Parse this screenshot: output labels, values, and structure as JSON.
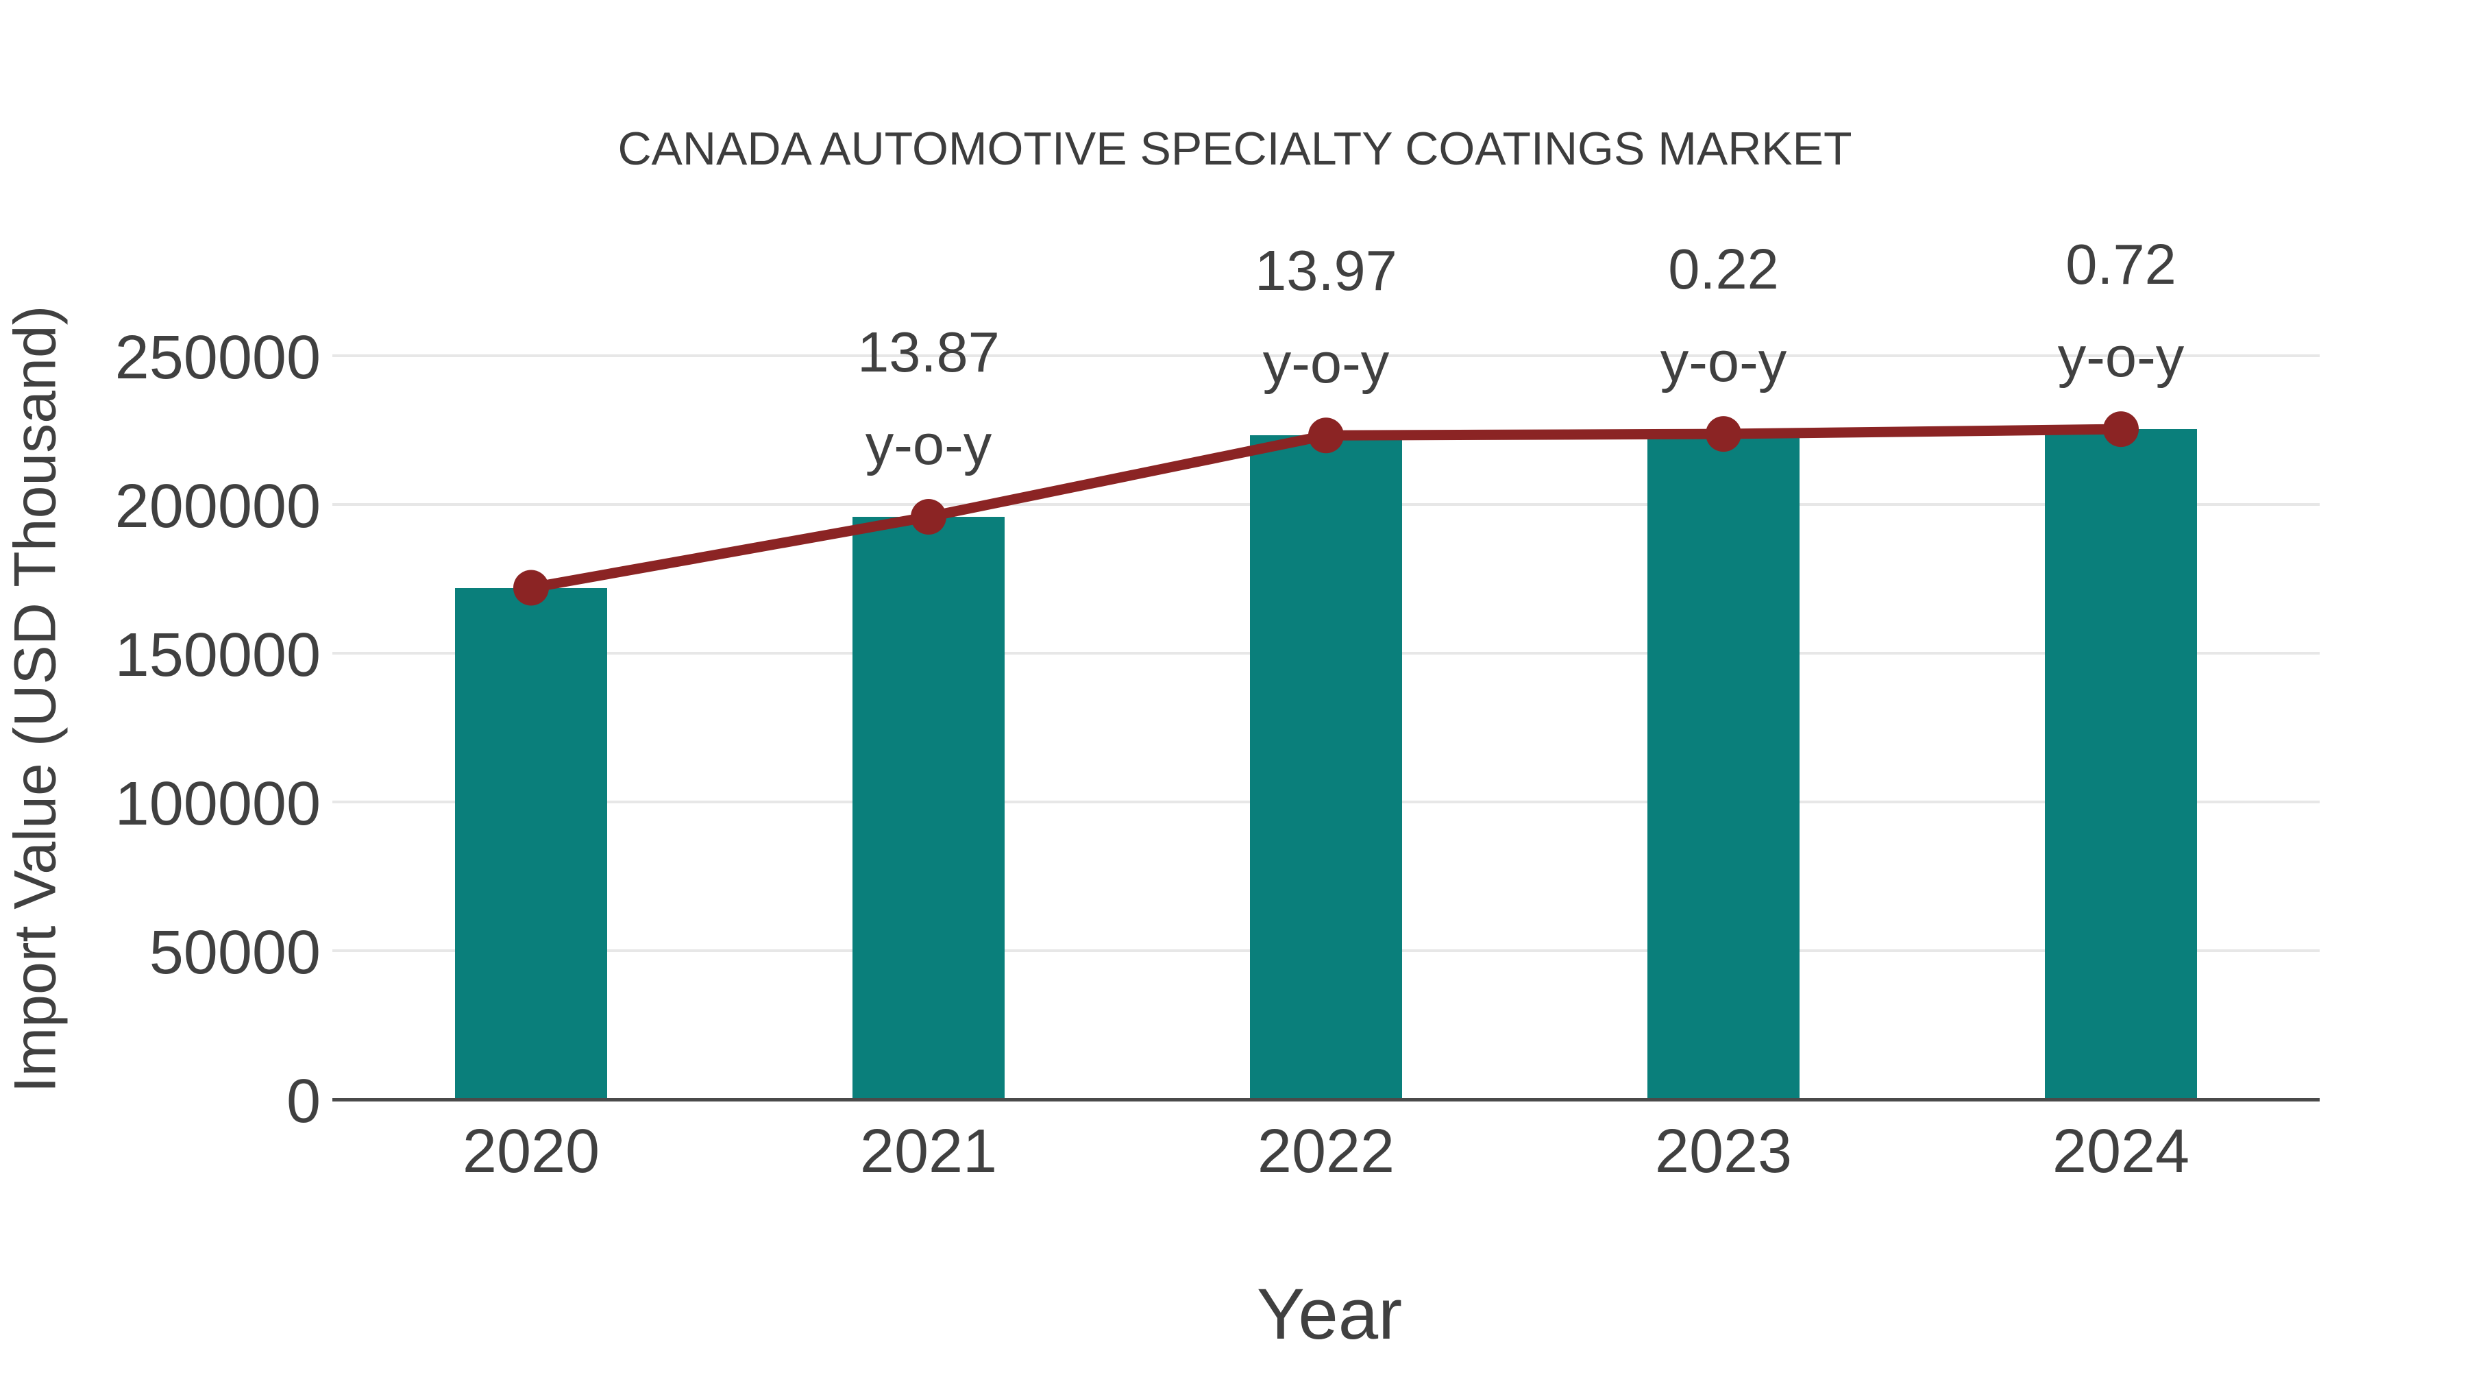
{
  "title": "CANADA AUTOMOTIVE SPECIALTY COATINGS MARKET",
  "chart_data": {
    "type": "bar",
    "title": "CANADA AUTOMOTIVE SPECIALTY COATINGS MARKET",
    "xlabel": "Year",
    "ylabel": "Import Value (USD Thousand)",
    "categories": [
      "2020",
      "2021",
      "2022",
      "2023",
      "2024"
    ],
    "series": [
      {
        "name": "Import Value bars",
        "type": "bar",
        "values": [
          172000,
          195856,
          223217,
          223708,
          225319
        ]
      },
      {
        "name": "Import Value trend line",
        "type": "line",
        "values": [
          172000,
          195856,
          223217,
          223708,
          225319
        ]
      }
    ],
    "annotations": [
      {
        "category": "2021",
        "value": "13.87",
        "label": "y-o-y"
      },
      {
        "category": "2022",
        "value": "13.97",
        "label": "y-o-y"
      },
      {
        "category": "2023",
        "value": "0.22",
        "label": "y-o-y"
      },
      {
        "category": "2024",
        "value": "0.72",
        "label": "y-o-y"
      }
    ],
    "ylim": [
      0,
      250000
    ],
    "yticks": [
      0,
      50000,
      100000,
      150000,
      200000,
      250000
    ],
    "grid": "horizontal",
    "legend_position": "none",
    "colors": {
      "bar": "#0a7f7b",
      "line": "#8b2424",
      "marker": "#8b2424",
      "text": "#404040",
      "gridline": "#e7e7e7",
      "axis_line": "#4a4a4a",
      "background": "#ffffff"
    }
  }
}
